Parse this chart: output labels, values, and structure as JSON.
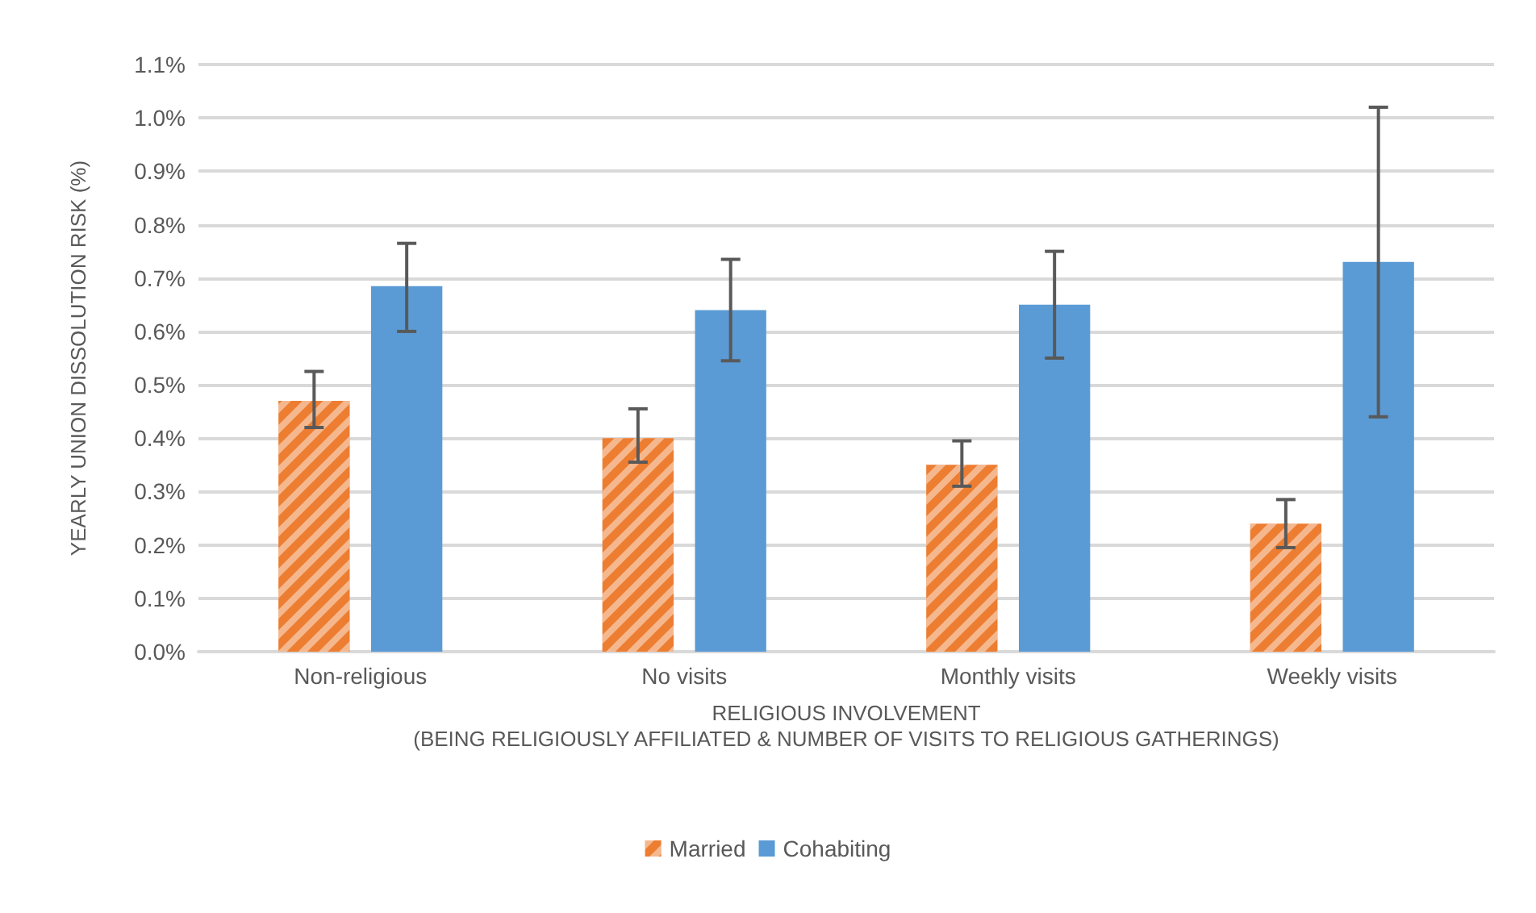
{
  "chart_data": {
    "type": "bar",
    "xlabel": "RELIGIOUS INVOLVEMENT\n(BEING RELIGIOUSLY AFFILIATED & NUMBER OF VISITS TO RELIGIOUS GATHERINGS)",
    "ylabel": "YEARLY UNION DISSOLUTION RISK (%)",
    "categories": [
      "Non-religious",
      "No visits",
      "Monthly visits",
      "Weekly visits"
    ],
    "series": [
      {
        "name": "Married",
        "color": "#ed7d31",
        "values": [
          0.47,
          0.4,
          0.35,
          0.24
        ],
        "errors": [
          [
            0.42,
            0.525
          ],
          [
            0.355,
            0.455
          ],
          [
            0.31,
            0.395
          ],
          [
            0.195,
            0.285
          ]
        ]
      },
      {
        "name": "Cohabiting",
        "color": "#5b9bd5",
        "values": [
          0.685,
          0.64,
          0.65,
          0.73
        ],
        "errors": [
          [
            0.6,
            0.765
          ],
          [
            0.545,
            0.735
          ],
          [
            0.55,
            0.75
          ],
          [
            0.44,
            1.02
          ]
        ]
      }
    ],
    "ylim": [
      0,
      1.1
    ],
    "yticks": [
      {
        "value": 0,
        "label": "0.0%"
      },
      {
        "value": 0.1,
        "label": "0.1%"
      },
      {
        "value": 0.2,
        "label": "0.2%"
      },
      {
        "value": 0.3,
        "label": "0.3%"
      },
      {
        "value": 0.4,
        "label": "0.4%"
      },
      {
        "value": 0.5,
        "label": "0.5%"
      },
      {
        "value": 0.6,
        "label": "0.6%"
      },
      {
        "value": 0.7,
        "label": "0.7%"
      },
      {
        "value": 0.8,
        "label": "0.8%"
      },
      {
        "value": 0.9,
        "label": "0.9%"
      },
      {
        "value": 1.0,
        "label": "1.0%"
      },
      {
        "value": 1.1,
        "label": "1.1%"
      }
    ],
    "grid": "y",
    "legend": "bottom"
  }
}
